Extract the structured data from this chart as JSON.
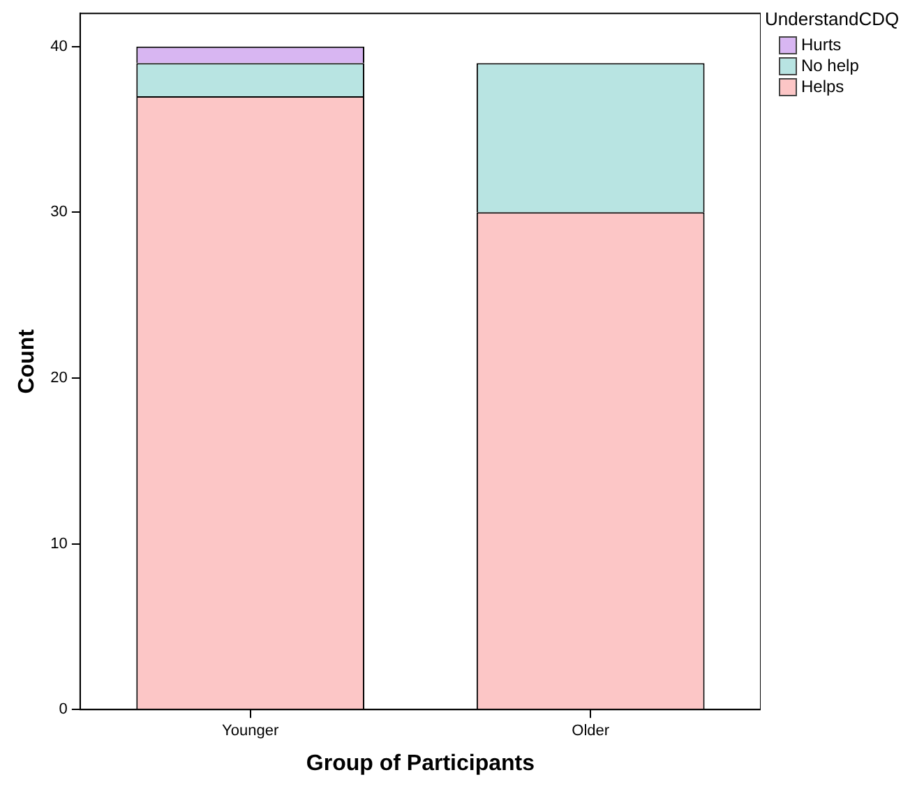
{
  "chart_data": {
    "type": "bar",
    "stacked": true,
    "xlabel": "Group of Participants",
    "ylabel": "Count",
    "legend_title": "UnderstandCDQ",
    "legend": "top right",
    "grid": false,
    "categories": [
      "Younger",
      "Older"
    ],
    "series": [
      {
        "name": "Helps",
        "color": "#fcc6c6",
        "values": [
          37,
          30
        ]
      },
      {
        "name": "No help",
        "color": "#b8e4e2",
        "values": [
          2,
          9
        ]
      },
      {
        "name": "Hurts",
        "color": "#d8b6f2",
        "values": [
          1,
          0
        ]
      }
    ],
    "ylim": [
      0,
      42
    ],
    "yticks": [
      0,
      10,
      20,
      30,
      40
    ]
  }
}
